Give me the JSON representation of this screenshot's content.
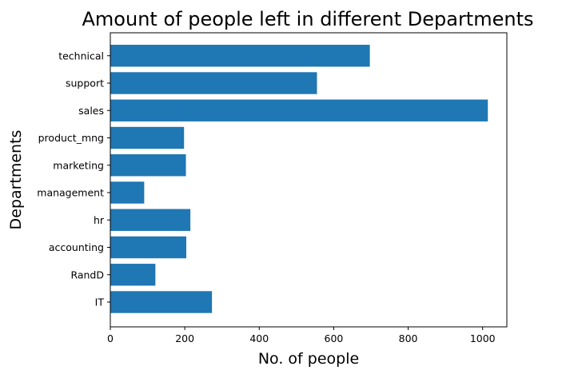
{
  "chart_data": {
    "type": "bar",
    "orientation": "horizontal",
    "title": "Amount of people left in different Departments",
    "xlabel": "No. of people",
    "ylabel": "Departments",
    "categories": [
      "IT",
      "RandD",
      "accounting",
      "hr",
      "management",
      "marketing",
      "product_mng",
      "sales",
      "support",
      "technical"
    ],
    "values": [
      273,
      121,
      204,
      215,
      91,
      203,
      198,
      1014,
      555,
      697
    ],
    "xlim": [
      0,
      1065
    ],
    "xticks": [
      0,
      200,
      400,
      600,
      800,
      1000
    ],
    "grid": false,
    "bar_color": "#1f77b4"
  }
}
